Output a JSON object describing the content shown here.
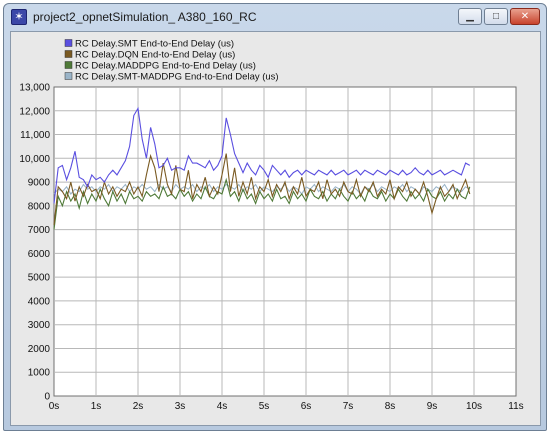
{
  "window": {
    "title": "project2_opnetSimulation_ A380_160_RC",
    "controls": {
      "minimize": "▁",
      "maximize": "□",
      "close": "✕"
    }
  },
  "colors": {
    "smt": "#5a4fe0",
    "dqn": "#7a5a22",
    "maddpg": "#4f7a38",
    "smt_maddpg": "#9ab4c8"
  },
  "chart_data": {
    "type": "line",
    "title": "",
    "xlabel": "",
    "ylabel": "",
    "xlim": [
      0,
      11
    ],
    "ylim": [
      0,
      13000
    ],
    "x_ticks": [
      "0s",
      "1s",
      "2s",
      "3s",
      "4s",
      "5s",
      "6s",
      "7s",
      "8s",
      "9s",
      "10s",
      "11s"
    ],
    "y_ticks": [
      "0",
      "1000",
      "2000",
      "3000",
      "4000",
      "5000",
      "6000",
      "7000",
      "8000",
      "9000",
      "10,000",
      "11,000",
      "12,000",
      "13,000"
    ],
    "grid": true,
    "legend_position": "top-left",
    "series": [
      {
        "name": "RC Delay.SMT End-to-End Delay (us)",
        "color": "#5a4fe0",
        "x": [
          0.0,
          0.1,
          0.2,
          0.3,
          0.4,
          0.5,
          0.6,
          0.7,
          0.8,
          0.9,
          1.0,
          1.1,
          1.2,
          1.3,
          1.4,
          1.5,
          1.6,
          1.7,
          1.8,
          1.9,
          2.0,
          2.1,
          2.2,
          2.3,
          2.4,
          2.5,
          2.6,
          2.7,
          2.8,
          2.9,
          3.0,
          3.1,
          3.2,
          3.3,
          3.4,
          3.5,
          3.6,
          3.7,
          3.8,
          3.9,
          4.0,
          4.1,
          4.2,
          4.3,
          4.4,
          4.5,
          4.6,
          4.7,
          4.8,
          4.9,
          5.0,
          5.1,
          5.2,
          5.3,
          5.4,
          5.5,
          5.6,
          5.7,
          5.8,
          5.9,
          6.0,
          6.1,
          6.2,
          6.3,
          6.4,
          6.5,
          6.6,
          6.7,
          6.8,
          6.9,
          7.0,
          7.1,
          7.2,
          7.3,
          7.4,
          7.5,
          7.6,
          7.7,
          7.8,
          7.9,
          8.0,
          8.1,
          8.2,
          8.3,
          8.4,
          8.5,
          8.6,
          8.7,
          8.8,
          8.9,
          9.0,
          9.1,
          9.2,
          9.3,
          9.4,
          9.5,
          9.6,
          9.7,
          9.8,
          9.9
        ],
        "y": [
          8100,
          9600,
          9700,
          9100,
          9600,
          10300,
          9200,
          9100,
          8800,
          9300,
          9100,
          9200,
          9000,
          9300,
          9500,
          9300,
          9600,
          9900,
          10500,
          11800,
          12100,
          10800,
          10000,
          11300,
          10600,
          9600,
          9700,
          10000,
          9500,
          9600,
          9600,
          9500,
          10100,
          9800,
          9800,
          9700,
          9600,
          9900,
          9500,
          9700,
          10100,
          11700,
          11000,
          10200,
          9800,
          9400,
          9800,
          9500,
          9300,
          9700,
          9500,
          9200,
          9700,
          9500,
          9300,
          9500,
          9200,
          9400,
          9500,
          9300,
          9500,
          9400,
          9300,
          9500,
          9400,
          9300,
          9500,
          9300,
          9400,
          9500,
          9300,
          9400,
          9500,
          9300,
          9500,
          9400,
          9300,
          9500,
          9400,
          9300,
          9500,
          9400,
          9300,
          9500,
          9300,
          9400,
          9600,
          9400,
          9300,
          9500,
          9300,
          9400,
          9500,
          9300,
          9400,
          9500,
          9400,
          9300,
          9800,
          9700
        ]
      },
      {
        "name": "RC Delay.DQN End-to-End Delay (us)",
        "color": "#7a5a22",
        "x": [
          0.0,
          0.1,
          0.2,
          0.3,
          0.4,
          0.5,
          0.6,
          0.7,
          0.8,
          0.9,
          1.0,
          1.1,
          1.2,
          1.3,
          1.4,
          1.5,
          1.6,
          1.7,
          1.8,
          1.9,
          2.0,
          2.1,
          2.2,
          2.3,
          2.4,
          2.5,
          2.6,
          2.7,
          2.8,
          2.9,
          3.0,
          3.1,
          3.2,
          3.3,
          3.4,
          3.5,
          3.6,
          3.7,
          3.8,
          3.9,
          4.0,
          4.1,
          4.2,
          4.3,
          4.4,
          4.5,
          4.6,
          4.7,
          4.8,
          4.9,
          5.0,
          5.1,
          5.2,
          5.3,
          5.4,
          5.5,
          5.6,
          5.7,
          5.8,
          5.9,
          6.0,
          6.1,
          6.2,
          6.3,
          6.4,
          6.5,
          6.6,
          6.7,
          6.8,
          6.9,
          7.0,
          7.1,
          7.2,
          7.3,
          7.4,
          7.5,
          7.6,
          7.7,
          7.8,
          7.9,
          8.0,
          8.1,
          8.2,
          8.3,
          8.4,
          8.5,
          8.6,
          8.7,
          8.8,
          8.9,
          9.0,
          9.1,
          9.2,
          9.3,
          9.4,
          9.5,
          9.6,
          9.7,
          9.8,
          9.9
        ],
        "y": [
          7200,
          8800,
          8600,
          8300,
          9000,
          8200,
          8800,
          8400,
          8900,
          8600,
          8700,
          8300,
          9000,
          8500,
          8800,
          8400,
          8700,
          8600,
          9000,
          8500,
          8800,
          8400,
          9300,
          10100,
          9600,
          8600,
          9800,
          8900,
          8500,
          9700,
          8700,
          8600,
          9500,
          8300,
          8900,
          8600,
          9200,
          8400,
          8800,
          8500,
          9300,
          10200,
          8600,
          9600,
          8400,
          9000,
          8500,
          9200,
          8300,
          8800,
          8600,
          9100,
          8400,
          8900,
          8600,
          9000,
          8300,
          8800,
          8500,
          9200,
          8400,
          8700,
          8600,
          9000,
          8300,
          9100,
          8500,
          8700,
          8400,
          9000,
          8600,
          8500,
          9100,
          8400,
          8800,
          8600,
          9000,
          8400,
          8700,
          8500,
          9100,
          8300,
          8800,
          8600,
          9000,
          8400,
          8700,
          8500,
          9000,
          8400,
          7700,
          8300,
          8800,
          8400,
          8600,
          8900,
          8300,
          8700,
          9100,
          8500
        ]
      },
      {
        "name": "RC Delay.MADDPG End-to-End Delay (us)",
        "color": "#4f7a38",
        "x": [
          0.0,
          0.1,
          0.2,
          0.3,
          0.4,
          0.5,
          0.6,
          0.7,
          0.8,
          0.9,
          1.0,
          1.1,
          1.2,
          1.3,
          1.4,
          1.5,
          1.6,
          1.7,
          1.8,
          1.9,
          2.0,
          2.1,
          2.2,
          2.3,
          2.4,
          2.5,
          2.6,
          2.7,
          2.8,
          2.9,
          3.0,
          3.1,
          3.2,
          3.3,
          3.4,
          3.5,
          3.6,
          3.7,
          3.8,
          3.9,
          4.0,
          4.1,
          4.2,
          4.3,
          4.4,
          4.5,
          4.6,
          4.7,
          4.8,
          4.9,
          5.0,
          5.1,
          5.2,
          5.3,
          5.4,
          5.5,
          5.6,
          5.7,
          5.8,
          5.9,
          6.0,
          6.1,
          6.2,
          6.3,
          6.4,
          6.5,
          6.6,
          6.7,
          6.8,
          6.9,
          7.0,
          7.1,
          7.2,
          7.3,
          7.4,
          7.5,
          7.6,
          7.7,
          7.8,
          7.9,
          8.0,
          8.1,
          8.2,
          8.3,
          8.4,
          8.5,
          8.6,
          8.7,
          8.8,
          8.9,
          9.0,
          9.1,
          9.2,
          9.3,
          9.4,
          9.5,
          9.6,
          9.7,
          9.8,
          9.9
        ],
        "y": [
          7000,
          8400,
          8000,
          8600,
          8200,
          8500,
          7900,
          8600,
          8100,
          8500,
          8200,
          8700,
          8300,
          8000,
          8600,
          8200,
          8500,
          8100,
          8600,
          8300,
          8400,
          8200,
          8600,
          8400,
          8500,
          8300,
          8800,
          8400,
          8500,
          8300,
          8700,
          8400,
          8600,
          8200,
          8500,
          8300,
          8800,
          8400,
          8300,
          8600,
          8500,
          9100,
          8400,
          8600,
          8200,
          8700,
          8300,
          8500,
          8100,
          8600,
          8300,
          8500,
          8200,
          8700,
          8300,
          8400,
          8100,
          8600,
          8300,
          8500,
          8200,
          8700,
          8400,
          8300,
          8600,
          8200,
          8500,
          8300,
          8700,
          8400,
          8200,
          8600,
          8300,
          8500,
          8200,
          8700,
          8400,
          8300,
          8600,
          8200,
          8500,
          8300,
          8700,
          8400,
          8200,
          8600,
          8300,
          8500,
          8200,
          8700,
          8400,
          8300,
          8600,
          8200,
          8500,
          8300,
          8700,
          8400,
          8300,
          8800
        ]
      },
      {
        "name": "RC Delay.SMT-MADDPG End-to-End Delay (us)",
        "color": "#9ab4c8",
        "x": [
          0.0,
          0.1,
          0.2,
          0.3,
          0.4,
          0.5,
          0.6,
          0.7,
          0.8,
          0.9,
          1.0,
          1.1,
          1.2,
          1.3,
          1.4,
          1.5,
          1.6,
          1.7,
          1.8,
          1.9,
          2.0,
          2.1,
          2.2,
          2.3,
          2.4,
          2.5,
          2.6,
          2.7,
          2.8,
          2.9,
          3.0,
          3.1,
          3.2,
          3.3,
          3.4,
          3.5,
          3.6,
          3.7,
          3.8,
          3.9,
          4.0,
          4.1,
          4.2,
          4.3,
          4.4,
          4.5,
          4.6,
          4.7,
          4.8,
          4.9,
          5.0,
          5.1,
          5.2,
          5.3,
          5.4,
          5.5,
          5.6,
          5.7,
          5.8,
          5.9,
          6.0,
          6.1,
          6.2,
          6.3,
          6.4,
          6.5,
          6.6,
          6.7,
          6.8,
          6.9,
          7.0,
          7.1,
          7.2,
          7.3,
          7.4,
          7.5,
          7.6,
          7.7,
          7.8,
          7.9,
          8.0,
          8.1,
          8.2,
          8.3,
          8.4,
          8.5,
          8.6,
          8.7,
          8.8,
          8.9,
          9.0,
          9.1,
          9.2,
          9.3,
          9.4,
          9.5,
          9.6,
          9.7,
          9.8,
          9.9
        ],
        "y": [
          8500,
          8700,
          8600,
          8800,
          8500,
          8700,
          8600,
          8900,
          8700,
          8800,
          8600,
          8800,
          8700,
          8900,
          8600,
          8800,
          8700,
          8900,
          8600,
          8800,
          8700,
          8900,
          8700,
          8800,
          8600,
          8900,
          8700,
          8800,
          8600,
          8900,
          8700,
          8800,
          8700,
          8900,
          8600,
          8800,
          8700,
          8900,
          8600,
          8800,
          8700,
          8900,
          8800,
          8700,
          8900,
          8600,
          8800,
          8700,
          8900,
          8600,
          8800,
          8700,
          8600,
          8800,
          8700,
          8900,
          8600,
          8800,
          8700,
          8500,
          8800,
          8700,
          8900,
          8600,
          8800,
          8700,
          8600,
          8800,
          8700,
          8900,
          8600,
          8800,
          8700,
          8500,
          8800,
          8700,
          8900,
          8600,
          8800,
          8700,
          8600,
          8800,
          8700,
          8900,
          8600,
          8800,
          8700,
          8500,
          8800,
          8700,
          8600,
          8800,
          8700,
          8900,
          8600,
          8800,
          8700,
          8600,
          8800,
          8700
        ]
      }
    ]
  }
}
